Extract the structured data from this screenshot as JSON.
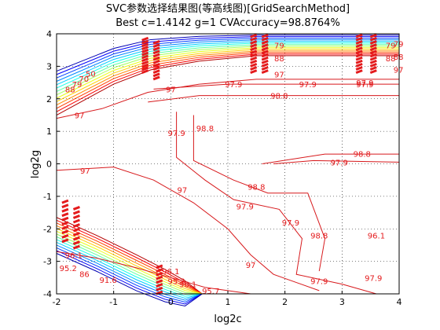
{
  "chart_data": {
    "type": "contour",
    "title": "SVC参数选择结果图(等高线图)[GridSearchMethod]",
    "subtitle": "Best c=1.4142 g=1 CVAccuracy=98.8764%",
    "xlabel": "log2c",
    "ylabel": "log2g",
    "xlim": [
      -2,
      4
    ],
    "ylim": [
      -4,
      4
    ],
    "xticks": [
      -2,
      -1,
      0,
      1,
      2,
      3,
      4
    ],
    "yticks": [
      -4,
      -3,
      -2,
      -1,
      0,
      1,
      2,
      3,
      4
    ],
    "grid": true,
    "best": {
      "log2c": 0.5,
      "log2g": 0,
      "accuracy": 98.8764
    },
    "contour_lines": [
      {
        "level": "96.1",
        "color": "#d7191c",
        "points": [
          [
            -2,
            -2.7
          ],
          [
            -1.3,
            -2.9
          ],
          [
            -0.6,
            -3.2
          ],
          [
            0,
            -3.5
          ],
          [
            0.6,
            -3.8
          ],
          [
            1.4,
            -4
          ]
        ],
        "labels": [
          [
            -1.7,
            -2.8
          ],
          [
            0.3,
            -3.7
          ]
        ]
      },
      {
        "level": "97",
        "color": "#d7191c",
        "points": [
          [
            -2,
            -0.2
          ],
          [
            -1,
            -0.1
          ],
          [
            -0.3,
            -0.5
          ],
          [
            0.4,
            -1.2
          ],
          [
            1,
            -2
          ],
          [
            1.4,
            -2.8
          ],
          [
            1.8,
            -3.4
          ],
          [
            2.6,
            -3.9
          ]
        ],
        "labels": [
          [
            -1.5,
            -0.2
          ],
          [
            0.2,
            -0.8
          ],
          [
            1.4,
            -3.1
          ]
        ]
      },
      {
        "level": "97.9",
        "color": "#d7191c",
        "points": [
          [
            0.1,
            1.6
          ],
          [
            0.1,
            0.2
          ],
          [
            0.6,
            -0.5
          ],
          [
            1.1,
            -1.1
          ],
          [
            1.9,
            -1.4
          ],
          [
            2.3,
            -2.3
          ],
          [
            2.2,
            -3.4
          ],
          [
            3,
            -3.7
          ],
          [
            3.6,
            -4
          ]
        ],
        "labels": [
          [
            0.1,
            0.95
          ],
          [
            1.3,
            -1.3
          ],
          [
            2.1,
            -1.8
          ],
          [
            2.6,
            -3.6
          ]
        ]
      },
      {
        "level": "98.8",
        "color": "#d7191c",
        "points": [
          [
            0.4,
            1.5
          ],
          [
            0.4,
            0.1
          ],
          [
            1.1,
            -0.5
          ],
          [
            1.7,
            -0.9
          ],
          [
            2.4,
            -0.9
          ],
          [
            2.7,
            -2.3
          ],
          [
            2.6,
            -3.3
          ]
        ],
        "labels": [
          [
            0.6,
            1.1
          ],
          [
            1.5,
            -0.7
          ],
          [
            2.6,
            -2.2
          ]
        ]
      },
      {
        "level": "98.8",
        "color": "#d7191c",
        "points": [
          [
            1.6,
            0
          ],
          [
            2.7,
            0.3
          ],
          [
            4,
            0.3
          ]
        ],
        "labels": [
          [
            3.35,
            0.32
          ]
        ]
      },
      {
        "level": "97.9",
        "color": "#d7191c",
        "points": [
          [
            1.8,
            0
          ],
          [
            2.5,
            0.1
          ],
          [
            4,
            0.05
          ]
        ],
        "labels": [
          [
            2.95,
            0.05
          ]
        ]
      },
      {
        "level": "98.8",
        "color": "#d7191c",
        "points": [
          [
            -0.4,
            1.9
          ],
          [
            0.5,
            2.1
          ],
          [
            1.5,
            2.1
          ],
          [
            4,
            2.1
          ]
        ],
        "labels": [
          [
            1.9,
            2.1
          ]
        ]
      },
      {
        "level": "97.9",
        "color": "#d7191c",
        "points": [
          [
            -0.3,
            2.3
          ],
          [
            1,
            2.45
          ],
          [
            2,
            2.45
          ],
          [
            4,
            2.45
          ]
        ],
        "labels": [
          [
            1.1,
            2.45
          ],
          [
            2.4,
            2.45
          ],
          [
            3.4,
            2.45
          ]
        ]
      },
      {
        "level": "97",
        "color": "#d7191c",
        "points": [
          [
            -2,
            1.4
          ],
          [
            -1.2,
            1.7
          ],
          [
            -0.4,
            2.2
          ],
          [
            0.5,
            2.45
          ],
          [
            1.5,
            2.6
          ],
          [
            4,
            2.6
          ]
        ],
        "labels": [
          [
            -1.6,
            1.5
          ],
          [
            0,
            2.3
          ]
        ]
      }
    ],
    "upper_left_band": {
      "levels": 14,
      "label_values": [
        "88",
        "79",
        "70",
        "50"
      ]
    },
    "lower_left_band": {
      "levels": 14,
      "label_values": [
        "95.2",
        "86",
        "91.6"
      ]
    },
    "upper_right_band": {
      "levels": 10,
      "label_values": [
        "79",
        "88",
        "97"
      ]
    },
    "scatter_labels": [
      {
        "text": "79",
        "log2c": 1.9,
        "log2g": 3.65
      },
      {
        "text": "88",
        "log2c": 1.9,
        "log2g": 3.25
      },
      {
        "text": "97",
        "log2c": 1.9,
        "log2g": 2.75
      },
      {
        "text": "79",
        "log2c": 3.85,
        "log2g": 3.65
      },
      {
        "text": "88",
        "log2c": 3.85,
        "log2g": 3.25
      },
      {
        "text": "97.9",
        "log2c": 3.4,
        "log2g": 2.5
      },
      {
        "text": "96.1",
        "log2c": 0.0,
        "log2g": -3.3
      },
      {
        "text": "95.2",
        "log2c": 0.1,
        "log2g": -3.6
      },
      {
        "text": "95.7",
        "log2c": 0.7,
        "log2g": -3.9
      },
      {
        "text": "96.1",
        "log2c": 3.6,
        "log2g": -2.2
      },
      {
        "text": "97.9",
        "log2c": 3.55,
        "log2g": -3.5
      }
    ]
  }
}
